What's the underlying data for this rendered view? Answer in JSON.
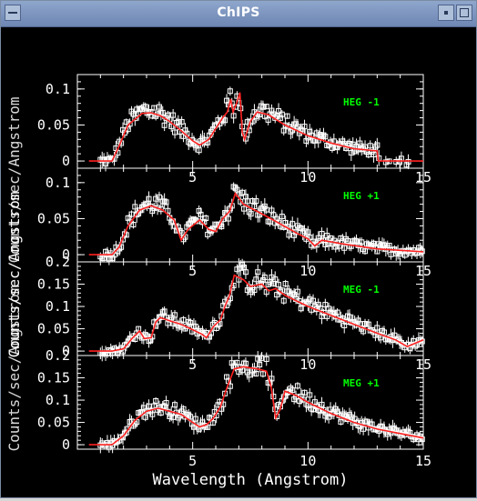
{
  "window": {
    "title": "ChIPS"
  },
  "colors": {
    "background": "#000000",
    "axes": "#ffffff",
    "points": "#ffffff",
    "model": "#ff2020",
    "label": "#00ff00",
    "titlebar": "#7a93be"
  },
  "chart_data": {
    "type": "scatter",
    "xlabel": "Wavelength (Angstrom)",
    "ylabel": "Counts/sec/Angstrom",
    "xlim": [
      0,
      15
    ],
    "xticks": [
      5,
      10,
      15
    ],
    "panels": [
      {
        "label": "HEG -1",
        "ylim": [
          -0.01,
          0.12
        ],
        "yticks": [
          "0",
          "0.05",
          "0.1"
        ],
        "ytick_values": [
          0,
          0.05,
          0.1
        ],
        "xtick_side": "none",
        "model": [
          [
            0.5,
            0
          ],
          [
            1.5,
            0
          ],
          [
            1.8,
            0.02
          ],
          [
            2.2,
            0.05
          ],
          [
            2.8,
            0.066
          ],
          [
            3.2,
            0.067
          ],
          [
            3.6,
            0.063
          ],
          [
            4,
            0.055
          ],
          [
            4.5,
            0.042
          ],
          [
            5,
            0.028
          ],
          [
            5.3,
            0.022
          ],
          [
            5.7,
            0.03
          ],
          [
            6,
            0.045
          ],
          [
            6.3,
            0.06
          ],
          [
            6.5,
            0.068
          ],
          [
            6.65,
            0.086
          ],
          [
            6.75,
            0.068
          ],
          [
            6.9,
            0.08
          ],
          [
            7.05,
            0.095
          ],
          [
            7.15,
            0.04
          ],
          [
            7.25,
            0.03
          ],
          [
            7.5,
            0.055
          ],
          [
            7.8,
            0.068
          ],
          [
            8.3,
            0.064
          ],
          [
            9,
            0.05
          ],
          [
            10,
            0.035
          ],
          [
            11,
            0.025
          ],
          [
            12,
            0.017
          ],
          [
            13,
            0.014
          ],
          [
            13.05,
            0
          ],
          [
            15,
            0
          ]
        ]
      },
      {
        "label": "HEG +1",
        "ylim": [
          -0.01,
          0.12
        ],
        "yticks": [
          "0",
          "0.05",
          "0.1"
        ],
        "ytick_values": [
          0,
          0.05,
          0.1
        ],
        "xtick_side": "top",
        "model": [
          [
            0.5,
            0
          ],
          [
            1.5,
            0
          ],
          [
            1.8,
            0.01
          ],
          [
            2.2,
            0.04
          ],
          [
            2.7,
            0.062
          ],
          [
            3.2,
            0.068
          ],
          [
            3.7,
            0.062
          ],
          [
            4.2,
            0.048
          ],
          [
            4.5,
            0.02
          ],
          [
            4.8,
            0.035
          ],
          [
            5.3,
            0.048
          ],
          [
            5.7,
            0.035
          ],
          [
            6,
            0.032
          ],
          [
            6.3,
            0.05
          ],
          [
            6.6,
            0.06
          ],
          [
            6.85,
            0.085
          ],
          [
            7.2,
            0.07
          ],
          [
            7.8,
            0.06
          ],
          [
            8.5,
            0.048
          ],
          [
            9.5,
            0.03
          ],
          [
            10,
            0.022
          ],
          [
            10.3,
            0.012
          ],
          [
            10.6,
            0.02
          ],
          [
            11.5,
            0.015
          ],
          [
            13,
            0.008
          ],
          [
            15,
            0.004
          ]
        ]
      },
      {
        "label": "MEG -1",
        "ylim": [
          -0.01,
          0.2
        ],
        "yticks": [
          "0",
          "0.05",
          "0.1",
          "0.15",
          "0.2"
        ],
        "ytick_values": [
          0,
          0.05,
          0.1,
          0.15,
          0.2
        ],
        "xtick_side": "top",
        "model": [
          [
            0.5,
            0
          ],
          [
            1.5,
            0
          ],
          [
            2,
            0.005
          ],
          [
            2.4,
            0.03
          ],
          [
            2.7,
            0.045
          ],
          [
            2.9,
            0.028
          ],
          [
            3.2,
            0.03
          ],
          [
            3.4,
            0.065
          ],
          [
            3.6,
            0.075
          ],
          [
            4,
            0.068
          ],
          [
            4.5,
            0.06
          ],
          [
            5,
            0.048
          ],
          [
            5.4,
            0.038
          ],
          [
            5.6,
            0.03
          ],
          [
            5.9,
            0.055
          ],
          [
            6.2,
            0.07
          ],
          [
            6.4,
            0.1
          ],
          [
            6.6,
            0.125
          ],
          [
            6.8,
            0.17
          ],
          [
            7.2,
            0.16
          ],
          [
            7.5,
            0.145
          ],
          [
            8,
            0.15
          ],
          [
            8.3,
            0.135
          ],
          [
            8.6,
            0.14
          ],
          [
            9,
            0.125
          ],
          [
            10,
            0.1
          ],
          [
            11,
            0.08
          ],
          [
            12,
            0.06
          ],
          [
            13,
            0.04
          ],
          [
            13.8,
            0.025
          ],
          [
            14.3,
            0.01
          ],
          [
            15,
            0.025
          ]
        ]
      },
      {
        "label": "MEG +1",
        "ylim": [
          -0.01,
          0.2
        ],
        "yticks": [
          "0",
          "0.05",
          "0.1",
          "0.15",
          "0.2"
        ],
        "ytick_values": [
          0,
          0.05,
          0.1,
          0.15,
          0.2
        ],
        "xtick_side": "both",
        "model": [
          [
            0.5,
            0
          ],
          [
            1.5,
            0
          ],
          [
            2,
            0.02
          ],
          [
            2.5,
            0.055
          ],
          [
            3,
            0.075
          ],
          [
            3.5,
            0.082
          ],
          [
            4,
            0.075
          ],
          [
            4.5,
            0.068
          ],
          [
            5,
            0.05
          ],
          [
            5.3,
            0.04
          ],
          [
            5.6,
            0.045
          ],
          [
            5.9,
            0.06
          ],
          [
            6.2,
            0.085
          ],
          [
            6.5,
            0.13
          ],
          [
            6.8,
            0.17
          ],
          [
            7.2,
            0.175
          ],
          [
            7.8,
            0.17
          ],
          [
            8.2,
            0.165
          ],
          [
            8.4,
            0.13
          ],
          [
            8.6,
            0.06
          ],
          [
            8.8,
            0.08
          ],
          [
            9,
            0.12
          ],
          [
            9.5,
            0.11
          ],
          [
            10,
            0.095
          ],
          [
            11,
            0.07
          ],
          [
            12,
            0.05
          ],
          [
            13,
            0.035
          ],
          [
            14,
            0.025
          ],
          [
            15,
            0.015
          ]
        ]
      }
    ]
  }
}
